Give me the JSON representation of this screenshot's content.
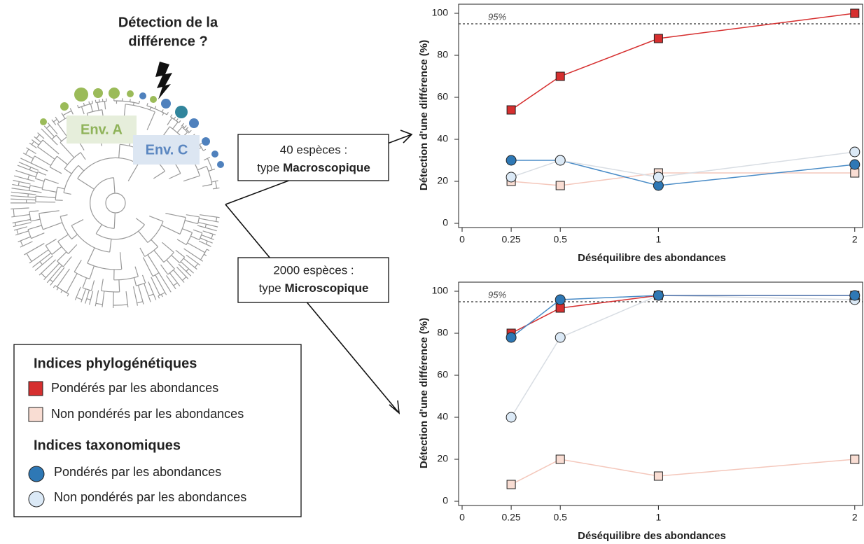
{
  "chart_data": [
    {
      "type": "line",
      "x_label": "Déséquilibre des abondances",
      "y_label": "Détection d'une différence (%)",
      "x": [
        0.25,
        0.5,
        1,
        2
      ],
      "xlim": [
        0,
        2.04
      ],
      "xticks": [
        0,
        0.25,
        0.5,
        1,
        2
      ],
      "ylim": [
        0,
        103
      ],
      "yticks": [
        0,
        20,
        40,
        60,
        80,
        100
      ],
      "hline": {
        "value": 95,
        "label": "95%"
      },
      "series": [
        {
          "name": "Pondérés par les abondances",
          "marker": "square",
          "color": "#d62f2f",
          "line_color": "#d62f2f",
          "values": [
            54,
            70,
            88,
            100
          ]
        },
        {
          "name": "Non pondérés par les abondances",
          "marker": "square",
          "color": "#f9ddd3",
          "line_color": "#f4c7bb",
          "values": [
            20,
            18,
            24,
            24
          ]
        },
        {
          "name": "Pondérés par les abondances",
          "marker": "circle",
          "color": "#2e78b5",
          "line_color": "#4a8cc7",
          "values": [
            30,
            30,
            18,
            28
          ]
        },
        {
          "name": "Non pondérés par les abondances",
          "marker": "circle",
          "color": "#dbe9f6",
          "line_color": "#d8dde3",
          "values": [
            22,
            30,
            22,
            34
          ]
        }
      ]
    },
    {
      "type": "line",
      "x_label": "Déséquilibre des abondances",
      "y_label": "Détection d'une différence (%)",
      "x": [
        0.25,
        0.5,
        1,
        2
      ],
      "xlim": [
        0,
        2.04
      ],
      "xticks": [
        0,
        0.25,
        0.5,
        1,
        2
      ],
      "ylim": [
        0,
        103
      ],
      "yticks": [
        0,
        20,
        40,
        60,
        80,
        100
      ],
      "hline": {
        "value": 95,
        "label": "95%"
      },
      "series": [
        {
          "marker": "square",
          "color": "#f9ddd3",
          "line_color": "#f4c7bb",
          "values": [
            8,
            20,
            12,
            20
          ]
        },
        {
          "marker": "circle",
          "color": "#dbe9f6",
          "line_color": "#d8dde3",
          "values": [
            40,
            78,
            98,
            96
          ]
        },
        {
          "marker": "square",
          "color": "#d62f2f",
          "line_color": "#d62f2f",
          "values": [
            80,
            92,
            98,
            98
          ]
        },
        {
          "marker": "circle",
          "color": "#2e78b5",
          "line_color": "#4a8cc7",
          "values": [
            78,
            96,
            98,
            98
          ]
        }
      ]
    }
  ],
  "diagram": {
    "question": [
      "Détection de la",
      "différence ?"
    ],
    "env_a": "Env. A",
    "env_c": "Env. C",
    "boxes": [
      {
        "line1": "40 espèces :",
        "prefix": "type",
        "bold": "Macroscopique"
      },
      {
        "line1": "2000 espèces :",
        "prefix": "type",
        "bold": "Microscopique"
      }
    ]
  },
  "legend_titles": [
    "Indices phylogénétiques",
    "Indices taxonomiques"
  ]
}
